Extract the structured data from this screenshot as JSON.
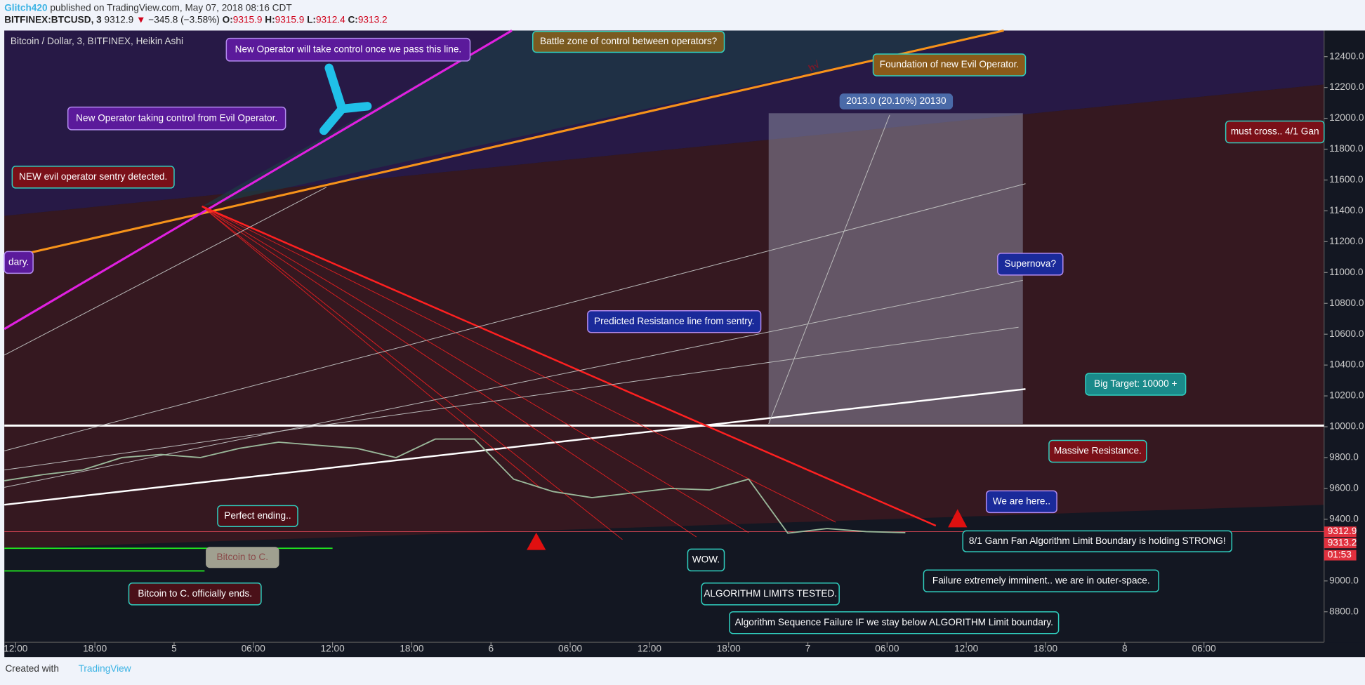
{
  "header": {
    "author": "Glitch420",
    "published": " published on TradingView.com, May 07, 2018 08:16 CDT",
    "symbol": "BITFINEX:BTCUSD, 3",
    "last": "9312.9",
    "arrow": "▼",
    "change": "−345.8 (−3.58%)",
    "o_label": "O:",
    "open": "9315.9",
    "h_label": "H:",
    "high": "9315.9",
    "l_label": "L:",
    "low": "9312.4",
    "c_label": "C:",
    "close": "9313.2"
  },
  "chart": {
    "legend": "Bitcoin / Dollar, 3, BITFINEX, Heikin Ashi",
    "yticks": [
      {
        "value": 12400,
        "label": "12400.0"
      },
      {
        "value": 12200,
        "label": "12200.0"
      },
      {
        "value": 12000,
        "label": "12000.0"
      },
      {
        "value": 11800,
        "label": "11800.0"
      },
      {
        "value": 11600,
        "label": "11600.0"
      },
      {
        "value": 11400,
        "label": "11400.0"
      },
      {
        "value": 11200,
        "label": "11200.0"
      },
      {
        "value": 11000,
        "label": "11000.0"
      },
      {
        "value": 10800,
        "label": "10800.0"
      },
      {
        "value": 10600,
        "label": "10600.0"
      },
      {
        "value": 10400,
        "label": "10400.0"
      },
      {
        "value": 10200,
        "label": "10200.0"
      },
      {
        "value": 10000,
        "label": "10000.0"
      },
      {
        "value": 9800,
        "label": "9800.0"
      },
      {
        "value": 9600,
        "label": "9600.0"
      },
      {
        "value": 9400,
        "label": "9400.0"
      },
      {
        "value": 9000,
        "label": "9000.0"
      },
      {
        "value": 8800,
        "label": "8800.0"
      }
    ],
    "xticks": [
      "12:00",
      "18:00",
      "5",
      "06:00",
      "12:00",
      "18:00",
      "6",
      "06:00",
      "12:00",
      "18:00",
      "7",
      "06:00",
      "12:00",
      "18:00",
      "8",
      "06:00"
    ],
    "price": [
      9650,
      9690,
      9720,
      9800,
      9820,
      9800,
      9860,
      9900,
      9880,
      9860,
      9800,
      9920,
      9920,
      9660,
      9580,
      9540,
      9570,
      9600,
      9590,
      9660,
      9310,
      9340,
      9320,
      9313
    ],
    "price_labels": [
      "9312.9",
      "9313.2",
      "01:53"
    ],
    "annotations": [
      "New Operator will take control once we pass this line.",
      "Battle zone of control between operators?",
      "Foundation of new Evil Operator.",
      "2013.0 (20.10%) 20130",
      "must cross.. 4/1 Gan",
      "New Operator taking control from Evil Operator.",
      "NEW evil operator sentry detected.",
      "dary.",
      "Supernova?",
      "Predicted Resistance line from sentry.",
      "Big Target: 10000 +",
      "Massive Resistance.",
      "We are here..",
      "8/1 Gann Fan Algorithm Limit Boundary is holding STRONG!",
      "Perfect ending..",
      "Bitcoin to C.",
      "Bitcoin to C. officially ends.",
      "WOW.",
      "ALGORITHM LIMITS TESTED.",
      "Failure extremely imminent.. we are in outer-space.",
      "Algorithm Sequence Failure IF we stay below ALGORITHM Limit boundary."
    ]
  },
  "footer": {
    "created": "Created with",
    "brand": "TradingView"
  }
}
